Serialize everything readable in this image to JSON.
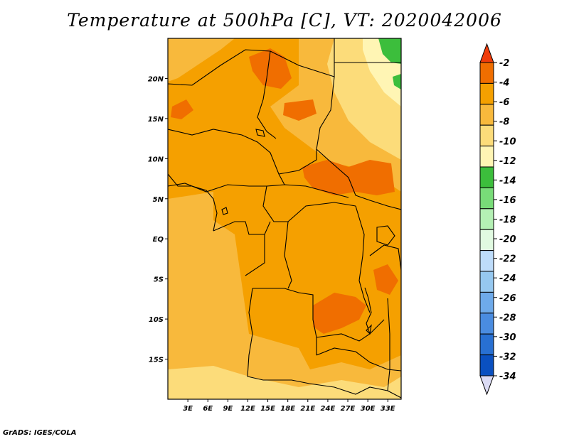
{
  "title": "Temperature at 500hPa [C], VT: 2020042006",
  "credit": "GrADS: IGES/COLA",
  "map": {
    "lon_range": [
      0,
      35
    ],
    "lat_range": [
      -20,
      25
    ],
    "lon_ticks": [
      "3E",
      "6E",
      "9E",
      "12E",
      "15E",
      "18E",
      "21E",
      "24E",
      "27E",
      "30E",
      "33E"
    ],
    "lat_ticks": [
      "20N",
      "15N",
      "10N",
      "5N",
      "EQ",
      "5S",
      "10S",
      "15S"
    ]
  },
  "colorbar": {
    "levels": [
      "-2",
      "-4",
      "-6",
      "-8",
      "-10",
      "-12",
      "-14",
      "-16",
      "-18",
      "-20",
      "-22",
      "-24",
      "-26",
      "-28",
      "-30",
      "-32",
      "-34"
    ],
    "colors": [
      "#f03c0a",
      "#f06e00",
      "#f5a000",
      "#f8b93c",
      "#fcdc7a",
      "#fff5b4",
      "#3cbe3c",
      "#78dc78",
      "#b4f0b4",
      "#e1fae1",
      "#bedcfa",
      "#96c8f0",
      "#6eaaea",
      "#4a8ce0",
      "#2870d2",
      "#0a50c0",
      "#0a1e78"
    ]
  },
  "colors": {
    "dominant_fill": "#f5a000",
    "secondary_fill": "#f8b93c",
    "warm_fill": "#f06e00",
    "cool_fill": "#fcdc7a",
    "green_fill": "#3cbe3c"
  }
}
